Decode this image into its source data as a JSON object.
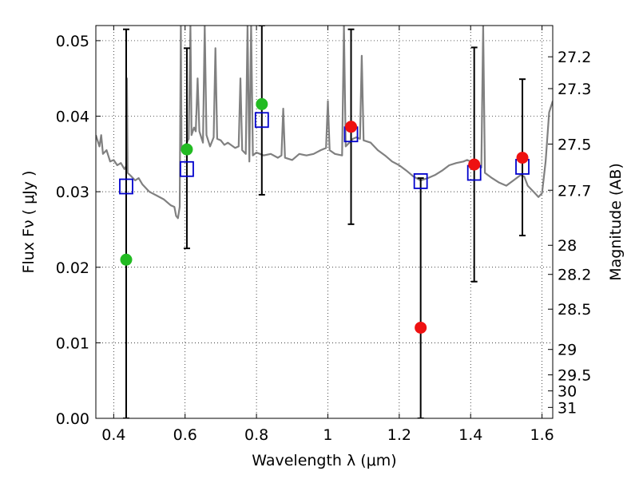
{
  "chart_data": {
    "type": "scatter",
    "xlabel": "Wavelength  λ (μm)",
    "ylabel": "Flux  Fν  ( μJy )",
    "ylabel_right": "Magnitude (AB)",
    "xlim": [
      0.35,
      1.63
    ],
    "ylim": [
      0.0,
      0.052
    ],
    "x_ticks": [
      0.4,
      0.6,
      0.8,
      1.0,
      1.2,
      1.4,
      1.6
    ],
    "x_tick_labels": [
      "0.4",
      "0.6",
      "0.8",
      "1",
      "1.2",
      "1.4",
      "1.6"
    ],
    "y_ticks": [
      0.0,
      0.01,
      0.02,
      0.03,
      0.04,
      0.05
    ],
    "y_tick_labels": [
      "0.00",
      "0.01",
      "0.02",
      "0.03",
      "0.04",
      "0.05"
    ],
    "mag_ticks": [
      "27.2",
      "27.3",
      "27.5",
      "27.7",
      "28",
      "28.2",
      "28.5",
      "29",
      "29.5",
      "30",
      "31"
    ],
    "grid": true,
    "colors": {
      "green": "#22bb22",
      "red": "#ee1111",
      "model_box": "#0000cc",
      "spectrum": "#808080",
      "errorbar": "#000000"
    },
    "observed_green": [
      {
        "x": 0.435,
        "y": 0.021
      },
      {
        "x": 0.605,
        "y": 0.0356
      },
      {
        "x": 0.815,
        "y": 0.0416
      }
    ],
    "observed_red": [
      {
        "x": 1.065,
        "y": 0.0386
      },
      {
        "x": 1.26,
        "y": 0.012
      },
      {
        "x": 1.41,
        "y": 0.0336
      },
      {
        "x": 1.545,
        "y": 0.0345
      }
    ],
    "error_bars": [
      {
        "x": 0.435,
        "low": 0.0,
        "high": 0.0515
      },
      {
        "x": 0.605,
        "low": 0.0225,
        "high": 0.049
      },
      {
        "x": 0.815,
        "low": 0.0296,
        "high": 0.052
      },
      {
        "x": 1.065,
        "low": 0.0257,
        "high": 0.0515
      },
      {
        "x": 1.26,
        "low": 0.0,
        "high": 0.0318
      },
      {
        "x": 1.41,
        "low": 0.0181,
        "high": 0.0491
      },
      {
        "x": 1.545,
        "low": 0.0242,
        "high": 0.0449
      }
    ],
    "model_boxes": [
      {
        "x": 0.435,
        "y": 0.0307
      },
      {
        "x": 0.605,
        "y": 0.033
      },
      {
        "x": 0.815,
        "y": 0.0395
      },
      {
        "x": 1.065,
        "y": 0.0376
      },
      {
        "x": 1.26,
        "y": 0.0314
      },
      {
        "x": 1.41,
        "y": 0.0325
      },
      {
        "x": 1.545,
        "y": 0.0333
      }
    ],
    "spectrum": [
      [
        0.35,
        0.0375
      ],
      [
        0.36,
        0.036
      ],
      [
        0.365,
        0.0375
      ],
      [
        0.37,
        0.035
      ],
      [
        0.38,
        0.0355
      ],
      [
        0.39,
        0.034
      ],
      [
        0.4,
        0.0342
      ],
      [
        0.41,
        0.0335
      ],
      [
        0.42,
        0.0338
      ],
      [
        0.43,
        0.033
      ],
      [
        0.435,
        0.0334
      ],
      [
        0.437,
        0.045
      ],
      [
        0.439,
        0.0325
      ],
      [
        0.45,
        0.032
      ],
      [
        0.46,
        0.0315
      ],
      [
        0.47,
        0.0318
      ],
      [
        0.48,
        0.031
      ],
      [
        0.5,
        0.03
      ],
      [
        0.52,
        0.0295
      ],
      [
        0.54,
        0.029
      ],
      [
        0.56,
        0.0282
      ],
      [
        0.57,
        0.028
      ],
      [
        0.575,
        0.0268
      ],
      [
        0.58,
        0.0265
      ],
      [
        0.585,
        0.028
      ],
      [
        0.588,
        0.052
      ],
      [
        0.59,
        0.0355
      ],
      [
        0.6,
        0.036
      ],
      [
        0.61,
        0.037
      ],
      [
        0.615,
        0.052
      ],
      [
        0.618,
        0.0375
      ],
      [
        0.625,
        0.0385
      ],
      [
        0.63,
        0.038
      ],
      [
        0.635,
        0.045
      ],
      [
        0.64,
        0.038
      ],
      [
        0.65,
        0.0365
      ],
      [
        0.655,
        0.052
      ],
      [
        0.66,
        0.0375
      ],
      [
        0.67,
        0.036
      ],
      [
        0.68,
        0.0372
      ],
      [
        0.685,
        0.049
      ],
      [
        0.69,
        0.037
      ],
      [
        0.7,
        0.0368
      ],
      [
        0.71,
        0.0362
      ],
      [
        0.72,
        0.0365
      ],
      [
        0.74,
        0.0358
      ],
      [
        0.75,
        0.036
      ],
      [
        0.755,
        0.045
      ],
      [
        0.76,
        0.0355
      ],
      [
        0.77,
        0.035
      ],
      [
        0.775,
        0.052
      ],
      [
        0.78,
        0.034
      ],
      [
        0.785,
        0.052
      ],
      [
        0.79,
        0.0348
      ],
      [
        0.8,
        0.0352
      ],
      [
        0.82,
        0.0348
      ],
      [
        0.84,
        0.035
      ],
      [
        0.86,
        0.0345
      ],
      [
        0.87,
        0.0348
      ],
      [
        0.875,
        0.041
      ],
      [
        0.88,
        0.0345
      ],
      [
        0.9,
        0.0342
      ],
      [
        0.92,
        0.035
      ],
      [
        0.94,
        0.0348
      ],
      [
        0.96,
        0.035
      ],
      [
        0.98,
        0.0355
      ],
      [
        0.995,
        0.0358
      ],
      [
        1.0,
        0.042
      ],
      [
        1.005,
        0.0355
      ],
      [
        1.02,
        0.035
      ],
      [
        1.04,
        0.0348
      ],
      [
        1.045,
        0.052
      ],
      [
        1.05,
        0.036
      ],
      [
        1.06,
        0.0365
      ],
      [
        1.07,
        0.037
      ],
      [
        1.08,
        0.0372
      ],
      [
        1.09,
        0.037
      ],
      [
        1.095,
        0.048
      ],
      [
        1.1,
        0.0368
      ],
      [
        1.12,
        0.0365
      ],
      [
        1.14,
        0.0355
      ],
      [
        1.16,
        0.0348
      ],
      [
        1.18,
        0.034
      ],
      [
        1.2,
        0.0335
      ],
      [
        1.22,
        0.0328
      ],
      [
        1.24,
        0.032
      ],
      [
        1.26,
        0.0315
      ],
      [
        1.28,
        0.0318
      ],
      [
        1.3,
        0.0322
      ],
      [
        1.32,
        0.0328
      ],
      [
        1.34,
        0.0335
      ],
      [
        1.36,
        0.0338
      ],
      [
        1.38,
        0.034
      ],
      [
        1.39,
        0.0342
      ],
      [
        1.4,
        0.034
      ],
      [
        1.42,
        0.0335
      ],
      [
        1.43,
        0.0332
      ],
      [
        1.435,
        0.052
      ],
      [
        1.44,
        0.0325
      ],
      [
        1.46,
        0.0318
      ],
      [
        1.48,
        0.0312
      ],
      [
        1.5,
        0.0308
      ],
      [
        1.52,
        0.0315
      ],
      [
        1.54,
        0.0322
      ],
      [
        1.55,
        0.032
      ],
      [
        1.56,
        0.0308
      ],
      [
        1.58,
        0.0298
      ],
      [
        1.59,
        0.0293
      ],
      [
        1.6,
        0.0298
      ],
      [
        1.61,
        0.034
      ],
      [
        1.62,
        0.0405
      ],
      [
        1.63,
        0.042
      ]
    ]
  }
}
